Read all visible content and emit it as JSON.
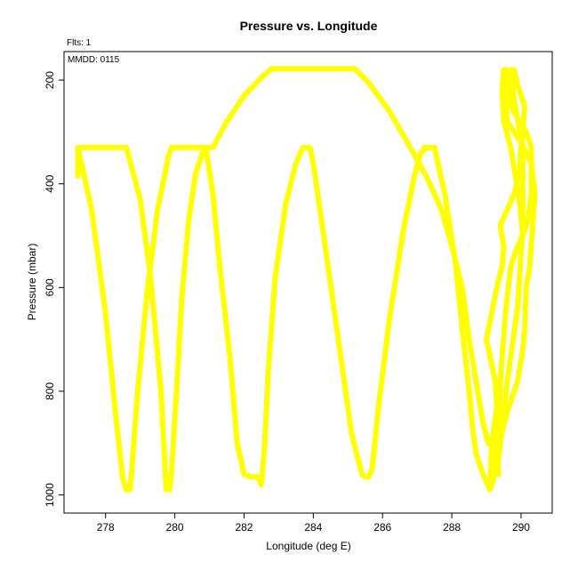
{
  "chart_data": {
    "type": "line",
    "title": "Pressure vs. Longitude",
    "xlabel": "Longitude (deg E)",
    "ylabel": "Pressure (mbar)",
    "xlim": [
      276.8,
      290.9
    ],
    "ylim": [
      1035,
      145
    ],
    "y_reversed": true,
    "grid": false,
    "legend": "none",
    "xticks": [
      278,
      280,
      282,
      284,
      286,
      288,
      290
    ],
    "yticks": [
      200,
      400,
      600,
      800,
      1000
    ],
    "annotations": {
      "fits": "Flts: 1",
      "mmdd": "MMDD: 0115"
    },
    "series_color": "#ffff00",
    "series": [
      {
        "x": [
          277.2,
          277.2,
          277.6,
          278.0,
          278.3,
          278.5,
          278.6,
          278.7,
          278.75,
          278.9,
          279.2,
          279.5,
          279.75,
          279.8,
          279.9,
          280.1,
          280.4,
          280.6,
          280.8,
          280.95,
          281.0
        ],
        "y": [
          385,
          330,
          450,
          650,
          850,
          970,
          990,
          990,
          960,
          820,
          610,
          450,
          370,
          350,
          330,
          330,
          330,
          330,
          330,
          330,
          330
        ]
      },
      {
        "x": [
          277.2,
          278.0,
          278.6,
          279.0,
          279.3,
          279.6,
          279.75,
          279.85,
          279.9,
          280.05,
          280.2,
          280.4,
          280.6,
          280.8,
          280.9
        ],
        "y": [
          330,
          330,
          330,
          430,
          580,
          800,
          990,
          990,
          960,
          800,
          620,
          470,
          380,
          340,
          330
        ]
      },
      {
        "x": [
          280.9,
          281.1,
          281.3,
          281.6,
          281.8,
          282.0,
          282.2,
          282.4,
          282.5,
          282.6,
          282.7,
          282.9,
          283.2,
          283.5,
          283.7,
          283.8,
          283.9,
          284.0,
          284.3,
          284.7,
          285.1,
          285.4,
          285.5,
          285.6,
          285.7,
          285.9,
          286.2,
          286.6,
          286.9,
          287.1,
          287.3
        ],
        "y": [
          330,
          420,
          560,
          740,
          900,
          960,
          965,
          965,
          980,
          900,
          760,
          580,
          440,
          360,
          330,
          330,
          330,
          360,
          500,
          690,
          880,
          960,
          965,
          965,
          950,
          820,
          660,
          490,
          390,
          340,
          330
        ]
      },
      {
        "x": [
          281.1,
          281.5,
          282.0,
          282.5,
          282.8,
          283.3,
          284.0,
          284.6,
          285.2,
          285.6,
          286.2,
          286.8,
          287.3,
          287.7,
          288.0,
          288.3,
          288.5,
          288.7,
          288.9,
          289.05
        ],
        "y": [
          330,
          280,
          230,
          195,
          178,
          178,
          178,
          178,
          178,
          205,
          260,
          330,
          390,
          450,
          520,
          600,
          700,
          780,
          860,
          900
        ]
      },
      {
        "x": [
          287.2,
          287.5,
          287.8,
          288.1,
          288.3,
          288.5,
          288.6,
          288.7,
          288.8,
          288.9,
          289.0,
          289.1,
          289.2,
          289.25,
          289.3,
          289.4
        ],
        "y": [
          330,
          330,
          420,
          550,
          680,
          800,
          870,
          920,
          940,
          960,
          975,
          990,
          970,
          930,
          900,
          840
        ]
      },
      {
        "x": [
          289.1,
          289.15,
          289.3,
          289.25,
          289.0,
          289.3,
          289.45,
          289.5,
          289.4,
          289.6,
          289.8,
          289.95,
          290.0,
          290.05,
          290.1,
          289.9,
          289.8,
          289.7,
          289.8,
          290.05,
          290.05,
          289.9,
          289.6,
          289.4,
          289.3
        ],
        "y": [
          990,
          900,
          830,
          780,
          700,
          600,
          560,
          520,
          480,
          450,
          420,
          380,
          330,
          300,
          250,
          210,
          180,
          180,
          240,
          330,
          480,
          640,
          780,
          900,
          960
        ]
      },
      {
        "x": [
          289.3,
          289.35,
          289.4,
          289.55,
          289.7,
          289.9,
          290.05,
          290.2,
          290.3,
          290.3,
          290.15,
          289.95,
          289.7,
          289.6,
          289.55,
          289.5,
          289.45,
          289.5,
          289.7,
          289.95,
          290.05
        ],
        "y": [
          960,
          900,
          780,
          650,
          560,
          520,
          500,
          470,
          420,
          330,
          300,
          280,
          250,
          200,
          180,
          180,
          220,
          280,
          330,
          430,
          500
        ]
      },
      {
        "x": [
          289.35,
          289.3,
          289.6,
          289.9,
          290.05,
          290.1,
          290.15,
          290.25,
          290.4,
          290.3,
          290.0,
          289.8,
          289.6,
          289.5,
          289.5
        ],
        "y": [
          960,
          920,
          840,
          780,
          720,
          680,
          600,
          560,
          420,
          360,
          320,
          300,
          280,
          200,
          180
        ]
      }
    ]
  }
}
